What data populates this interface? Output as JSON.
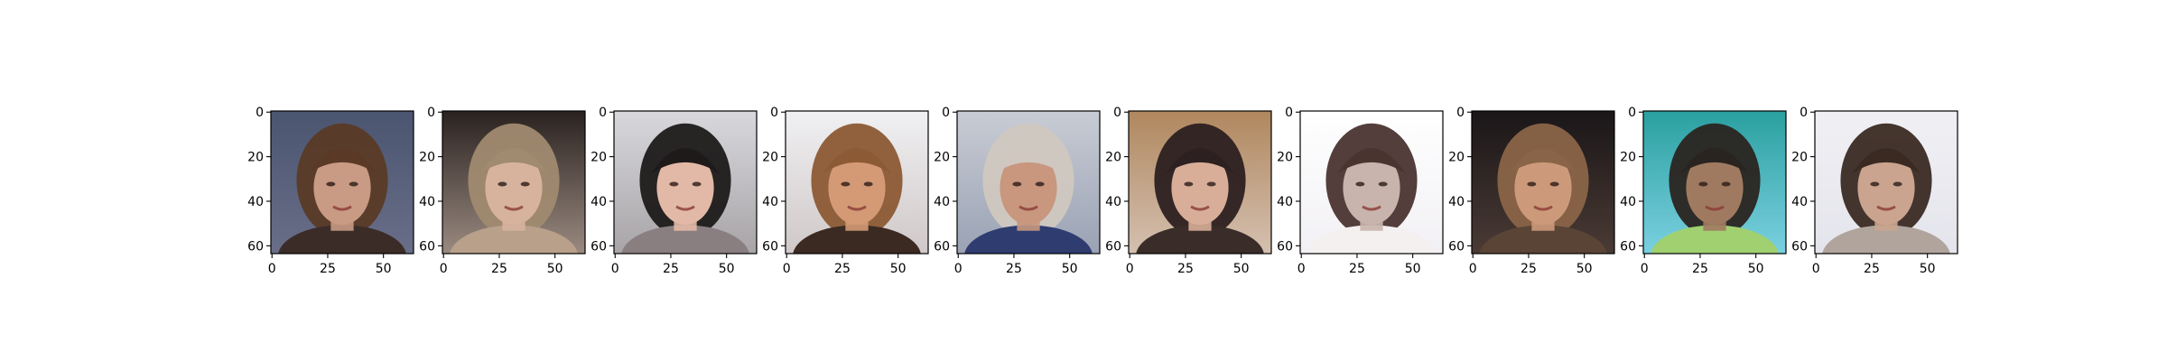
{
  "figure": {
    "description_free": true,
    "panel_count": 10,
    "axes": {
      "x_ticks": [
        "0",
        "25",
        "50"
      ],
      "y_ticks": [
        "0",
        "20",
        "40",
        "60"
      ]
    },
    "panels": [
      {
        "bg_top": "#4a5570",
        "bg_bottom": "#6a6e88",
        "skin": "#c99a84",
        "hair": "#5a3a26",
        "shirt": "#3b2c28"
      },
      {
        "bg_top": "#2a2220",
        "bg_bottom": "#9a8a80",
        "skin": "#d7b39e",
        "hair": "#a08a70",
        "shirt": "#b8a08a"
      },
      {
        "bg_top": "#d8d8dc",
        "bg_bottom": "#a8a4a8",
        "skin": "#e2b9a6",
        "hair": "#1e1a1a",
        "shirt": "#8a7f80"
      },
      {
        "bg_top": "#f0f0f2",
        "bg_bottom": "#d0c8c8",
        "skin": "#d49a76",
        "hair": "#8c5a34",
        "shirt": "#3a2a22"
      },
      {
        "bg_top": "#c8ccd4",
        "bg_bottom": "#9aa2b4",
        "skin": "#c8977e",
        "hair": "#d0c8c0",
        "shirt": "#2e3c70"
      },
      {
        "bg_top": "#b0875e",
        "bg_bottom": "#d4c0b0",
        "skin": "#d8ae98",
        "hair": "#2c2020",
        "shirt": "#3a2c28"
      },
      {
        "bg_top": "#ffffff",
        "bg_bottom": "#f2f0f4",
        "skin": "#c8b4ac",
        "hair": "#4a3430",
        "shirt": "#f4f0f0"
      },
      {
        "bg_top": "#1a1618",
        "bg_bottom": "#4a3a34",
        "skin": "#cc9a7a",
        "hair": "#8a6448",
        "shirt": "#5a4436"
      },
      {
        "bg_top": "#2aa0a0",
        "bg_bottom": "#7ad0e0",
        "skin": "#a07a60",
        "hair": "#2a2420",
        "shirt": "#a0d070"
      },
      {
        "bg_top": "#f0f0f4",
        "bg_bottom": "#e4e4ec",
        "skin": "#caa48e",
        "hair": "#3a2a22",
        "shirt": "#b0a49c"
      }
    ]
  }
}
